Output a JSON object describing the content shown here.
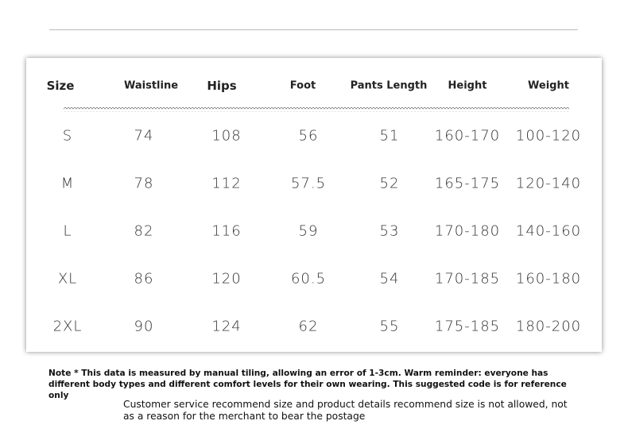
{
  "table": {
    "header": [
      "Size",
      "Waistline",
      "Hips",
      "Foot",
      "Pants Length",
      "Height",
      "Weight"
    ],
    "rows": [
      [
        "S",
        "74",
        "108",
        "56",
        "51",
        "160-170",
        "100-120"
      ],
      [
        "M",
        "78",
        "112",
        "57.5",
        "52",
        "165-175",
        "120-140"
      ],
      [
        "L",
        "82",
        "116",
        "59",
        "53",
        "170-180",
        "140-160"
      ],
      [
        "XL",
        "86",
        "120",
        "60.5",
        "54",
        "170-185",
        "160-180"
      ],
      [
        "2XL",
        "90",
        "124",
        "62",
        "55",
        "175-185",
        "180-200"
      ]
    ]
  },
  "notes": [
    "Note * This data is measured by manual tiling, allowing an error of 1-3cm. Warm reminder: everyone has different body types and different comfort levels for their own wearing. This suggested code is for reference only",
    "Customer service recommend size and product details recommend size is not allowed, not as a reason for the merchant to bear the postage"
  ]
}
